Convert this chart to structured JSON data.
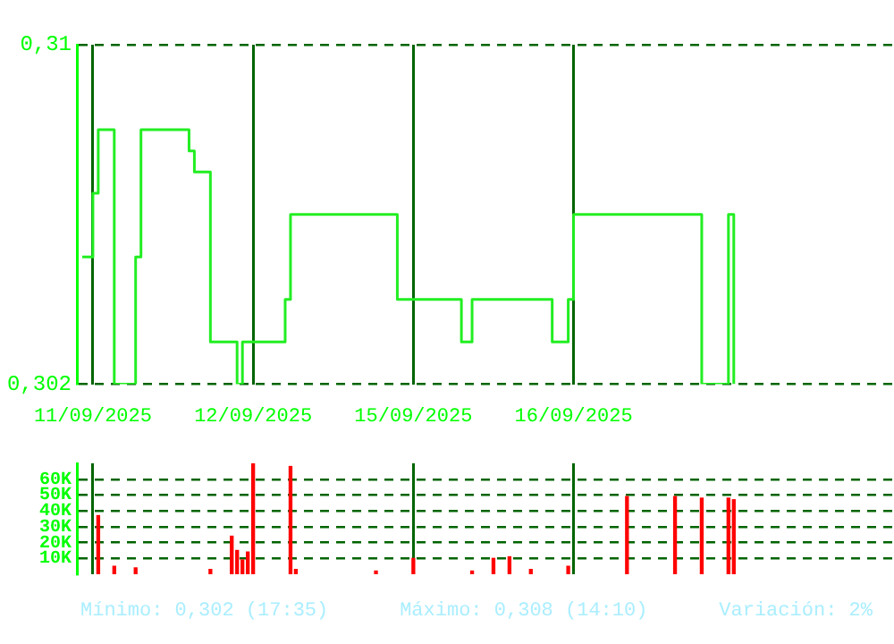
{
  "chart_data": [
    {
      "type": "step",
      "color": "#22ee22",
      "categories": [
        null,
        null,
        null,
        "11/09/2025",
        null,
        null,
        null,
        null,
        null,
        null,
        null,
        null,
        null,
        null,
        null,
        null,
        null,
        null,
        null,
        null,
        null,
        null,
        null,
        null,
        null,
        null,
        null,
        null,
        null,
        null,
        null,
        null,
        null,
        "12/09/2025",
        null,
        null,
        null,
        null,
        null,
        null,
        null,
        null,
        null,
        null,
        null,
        null,
        null,
        null,
        null,
        null,
        null,
        null,
        null,
        null,
        null,
        null,
        null,
        null,
        null,
        null,
        null,
        null,
        null,
        "15/09/2025",
        null,
        null,
        null,
        null,
        null,
        null,
        null,
        null,
        null,
        null,
        null,
        null,
        null,
        null,
        null,
        null,
        null,
        null,
        null,
        null,
        null,
        null,
        null,
        null,
        null,
        null,
        null,
        null,
        null,
        "16/09/2025",
        null,
        null,
        null,
        null,
        null,
        null,
        null,
        null,
        null,
        null,
        null,
        null,
        null,
        null,
        null,
        null,
        null,
        null,
        null,
        null,
        null,
        null,
        null,
        null,
        null,
        null,
        null,
        null,
        null,
        null,
        null,
        null,
        null,
        null,
        null,
        null,
        null,
        null,
        null,
        null,
        null,
        null,
        null,
        null,
        null,
        null,
        null,
        null,
        null,
        null,
        null,
        null,
        null,
        null,
        null,
        null,
        null,
        null,
        null,
        null
      ],
      "values": [
        null,
        0.305,
        0.305,
        0.3065,
        0.308,
        0.308,
        0.308,
        0.302,
        0.302,
        0.302,
        0.302,
        0.305,
        0.308,
        0.308,
        0.308,
        0.308,
        0.308,
        0.308,
        0.308,
        0.308,
        0.308,
        0.3075,
        0.307,
        0.307,
        0.307,
        0.303,
        0.303,
        0.303,
        0.303,
        0.303,
        0.302,
        0.303,
        0.303,
        0.303,
        0.303,
        0.303,
        0.303,
        0.303,
        0.303,
        0.304,
        0.306,
        0.306,
        0.306,
        0.306,
        0.306,
        0.306,
        0.306,
        0.306,
        0.306,
        0.306,
        0.306,
        0.306,
        0.306,
        0.306,
        0.306,
        0.306,
        0.306,
        0.306,
        0.306,
        0.306,
        0.304,
        0.304,
        0.304,
        0.304,
        0.304,
        0.304,
        0.304,
        0.304,
        0.304,
        0.304,
        0.304,
        0.304,
        0.303,
        0.303,
        0.304,
        0.304,
        0.304,
        0.304,
        0.304,
        0.304,
        0.304,
        0.304,
        0.304,
        0.304,
        0.304,
        0.304,
        0.304,
        0.304,
        0.304,
        0.303,
        0.303,
        0.303,
        0.304,
        0.306,
        0.306,
        0.306,
        0.306,
        0.306,
        0.306,
        0.306,
        0.306,
        0.306,
        0.306,
        0.306,
        0.306,
        0.306,
        0.306,
        0.306,
        0.306,
        0.306,
        0.306,
        0.306,
        0.306,
        0.306,
        0.306,
        0.306,
        0.306,
        0.302,
        0.302,
        0.302,
        0.302,
        0.302,
        0.306,
        0.302,
        null,
        null,
        null,
        null,
        null,
        null,
        null,
        null,
        null,
        null,
        null,
        null,
        null,
        null,
        null,
        null,
        null,
        null,
        null,
        null,
        null,
        null,
        null,
        null,
        null,
        null,
        null,
        null,
        null,
        null
      ],
      "ylim": [
        0.302,
        0.31
      ],
      "yticks": [
        {
          "value": 0.302,
          "label": "0,302"
        },
        {
          "value": 0.31,
          "label": "0,31"
        }
      ],
      "grid": true
    },
    {
      "type": "bar",
      "color": "#ff0000",
      "tick_labels": "y",
      "categories": [
        null,
        null,
        null,
        null,
        null,
        null,
        null,
        null,
        null,
        null,
        null,
        null,
        null,
        null,
        null,
        null,
        null,
        null,
        null,
        null,
        null,
        null,
        null,
        null,
        null,
        null,
        null,
        null,
        null,
        null,
        null,
        null,
        null,
        null,
        null,
        null,
        null,
        null,
        null,
        null,
        null,
        null,
        null,
        null,
        null,
        null,
        null,
        null,
        null,
        null,
        null,
        null,
        null,
        null,
        null,
        null,
        null,
        null,
        null,
        null,
        null,
        null,
        null,
        null,
        null,
        null,
        null,
        null,
        null,
        null,
        null,
        null,
        null,
        null,
        null,
        null,
        null,
        null,
        null,
        null,
        null,
        null,
        null,
        null,
        null,
        null,
        null,
        null,
        null,
        null,
        null,
        null,
        null,
        null,
        null,
        null,
        null,
        null,
        null,
        null,
        null,
        null,
        null,
        null,
        null,
        null,
        null,
        null,
        null,
        null,
        null,
        null,
        null,
        null,
        null,
        null,
        null,
        null,
        null,
        null,
        null,
        null,
        null,
        null,
        null,
        null,
        null,
        null,
        null,
        null,
        null,
        null,
        null,
        null,
        null,
        null,
        null,
        null,
        null,
        null,
        null,
        null,
        null,
        null,
        null,
        null,
        null,
        null,
        null,
        null,
        null,
        null,
        null,
        null
      ],
      "values": [
        null,
        null,
        null,
        null,
        37000,
        null,
        null,
        5000,
        null,
        null,
        null,
        4000,
        null,
        null,
        null,
        null,
        null,
        null,
        null,
        null,
        null,
        null,
        null,
        null,
        null,
        3000,
        null,
        null,
        null,
        24000,
        15000,
        9000,
        14000,
        70000,
        null,
        null,
        null,
        null,
        null,
        null,
        68000,
        3000,
        null,
        null,
        null,
        null,
        null,
        null,
        null,
        null,
        null,
        null,
        null,
        null,
        null,
        null,
        2000,
        null,
        null,
        null,
        null,
        null,
        null,
        10000,
        null,
        null,
        null,
        null,
        null,
        null,
        null,
        null,
        null,
        null,
        2000,
        null,
        null,
        null,
        10000,
        null,
        null,
        11000,
        null,
        null,
        null,
        3000,
        null,
        null,
        null,
        null,
        null,
        null,
        5000,
        null,
        null,
        null,
        null,
        null,
        null,
        null,
        null,
        null,
        null,
        49000,
        null,
        null,
        null,
        null,
        null,
        null,
        null,
        null,
        49000,
        null,
        null,
        null,
        null,
        48000,
        null,
        null,
        null,
        null,
        48000,
        47000,
        null,
        null,
        null,
        null,
        null,
        null,
        null,
        null,
        null,
        null,
        null,
        null,
        null,
        null,
        null,
        null,
        null,
        null,
        null,
        null,
        null,
        null,
        null,
        null,
        null,
        null,
        null,
        null,
        null,
        null
      ],
      "ylim": [
        0,
        70000
      ],
      "yticks": [
        {
          "value": 10000,
          "label": "10K"
        },
        {
          "value": 20000,
          "label": "20K"
        },
        {
          "value": 30000,
          "label": "30K"
        },
        {
          "value": 40000,
          "label": "40K"
        },
        {
          "value": 50000,
          "label": "50K"
        },
        {
          "value": 60000,
          "label": "60K"
        }
      ],
      "grid": true,
      "annotations": [
        "Mínimo: 0,302 (17:35)",
        "Máximo: 0,308 (14:10)",
        "Variación: 2%"
      ]
    }
  ]
}
